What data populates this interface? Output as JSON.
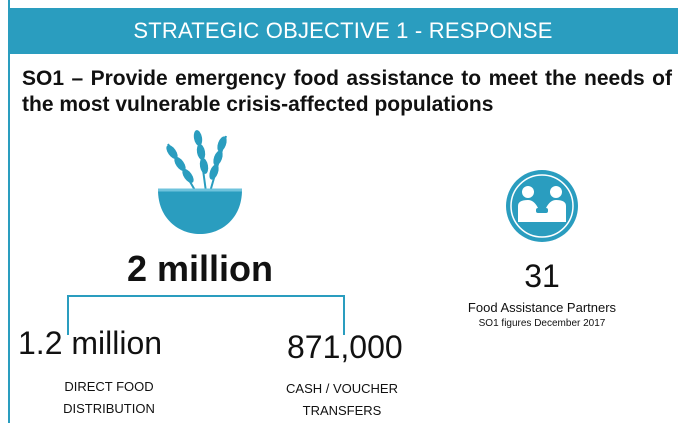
{
  "banner": {
    "title": "STRATEGIC OBJECTIVE 1 - RESPONSE"
  },
  "objective": {
    "text": "SO1 – Provide emergency food assistance to meet the needs of the most vulnerable crisis-affected populations"
  },
  "total": {
    "value": "2 million"
  },
  "direct": {
    "value": "1.2 million",
    "label_line1": "DIRECT FOOD",
    "label_line2": "DISTRIBUTION"
  },
  "cash": {
    "value": "871,000",
    "label_line1": "CASH / VOUCHER",
    "label_line2": "TRANSFERS"
  },
  "partners": {
    "value": "31",
    "label": "Food Assistance  Partners",
    "note": "SO1 figures December 2017"
  },
  "icons": {
    "food": "wheat-bowl-icon",
    "partners": "handshake-icon"
  },
  "colors": {
    "accent": "#2a9dbf",
    "text": "#111111"
  }
}
